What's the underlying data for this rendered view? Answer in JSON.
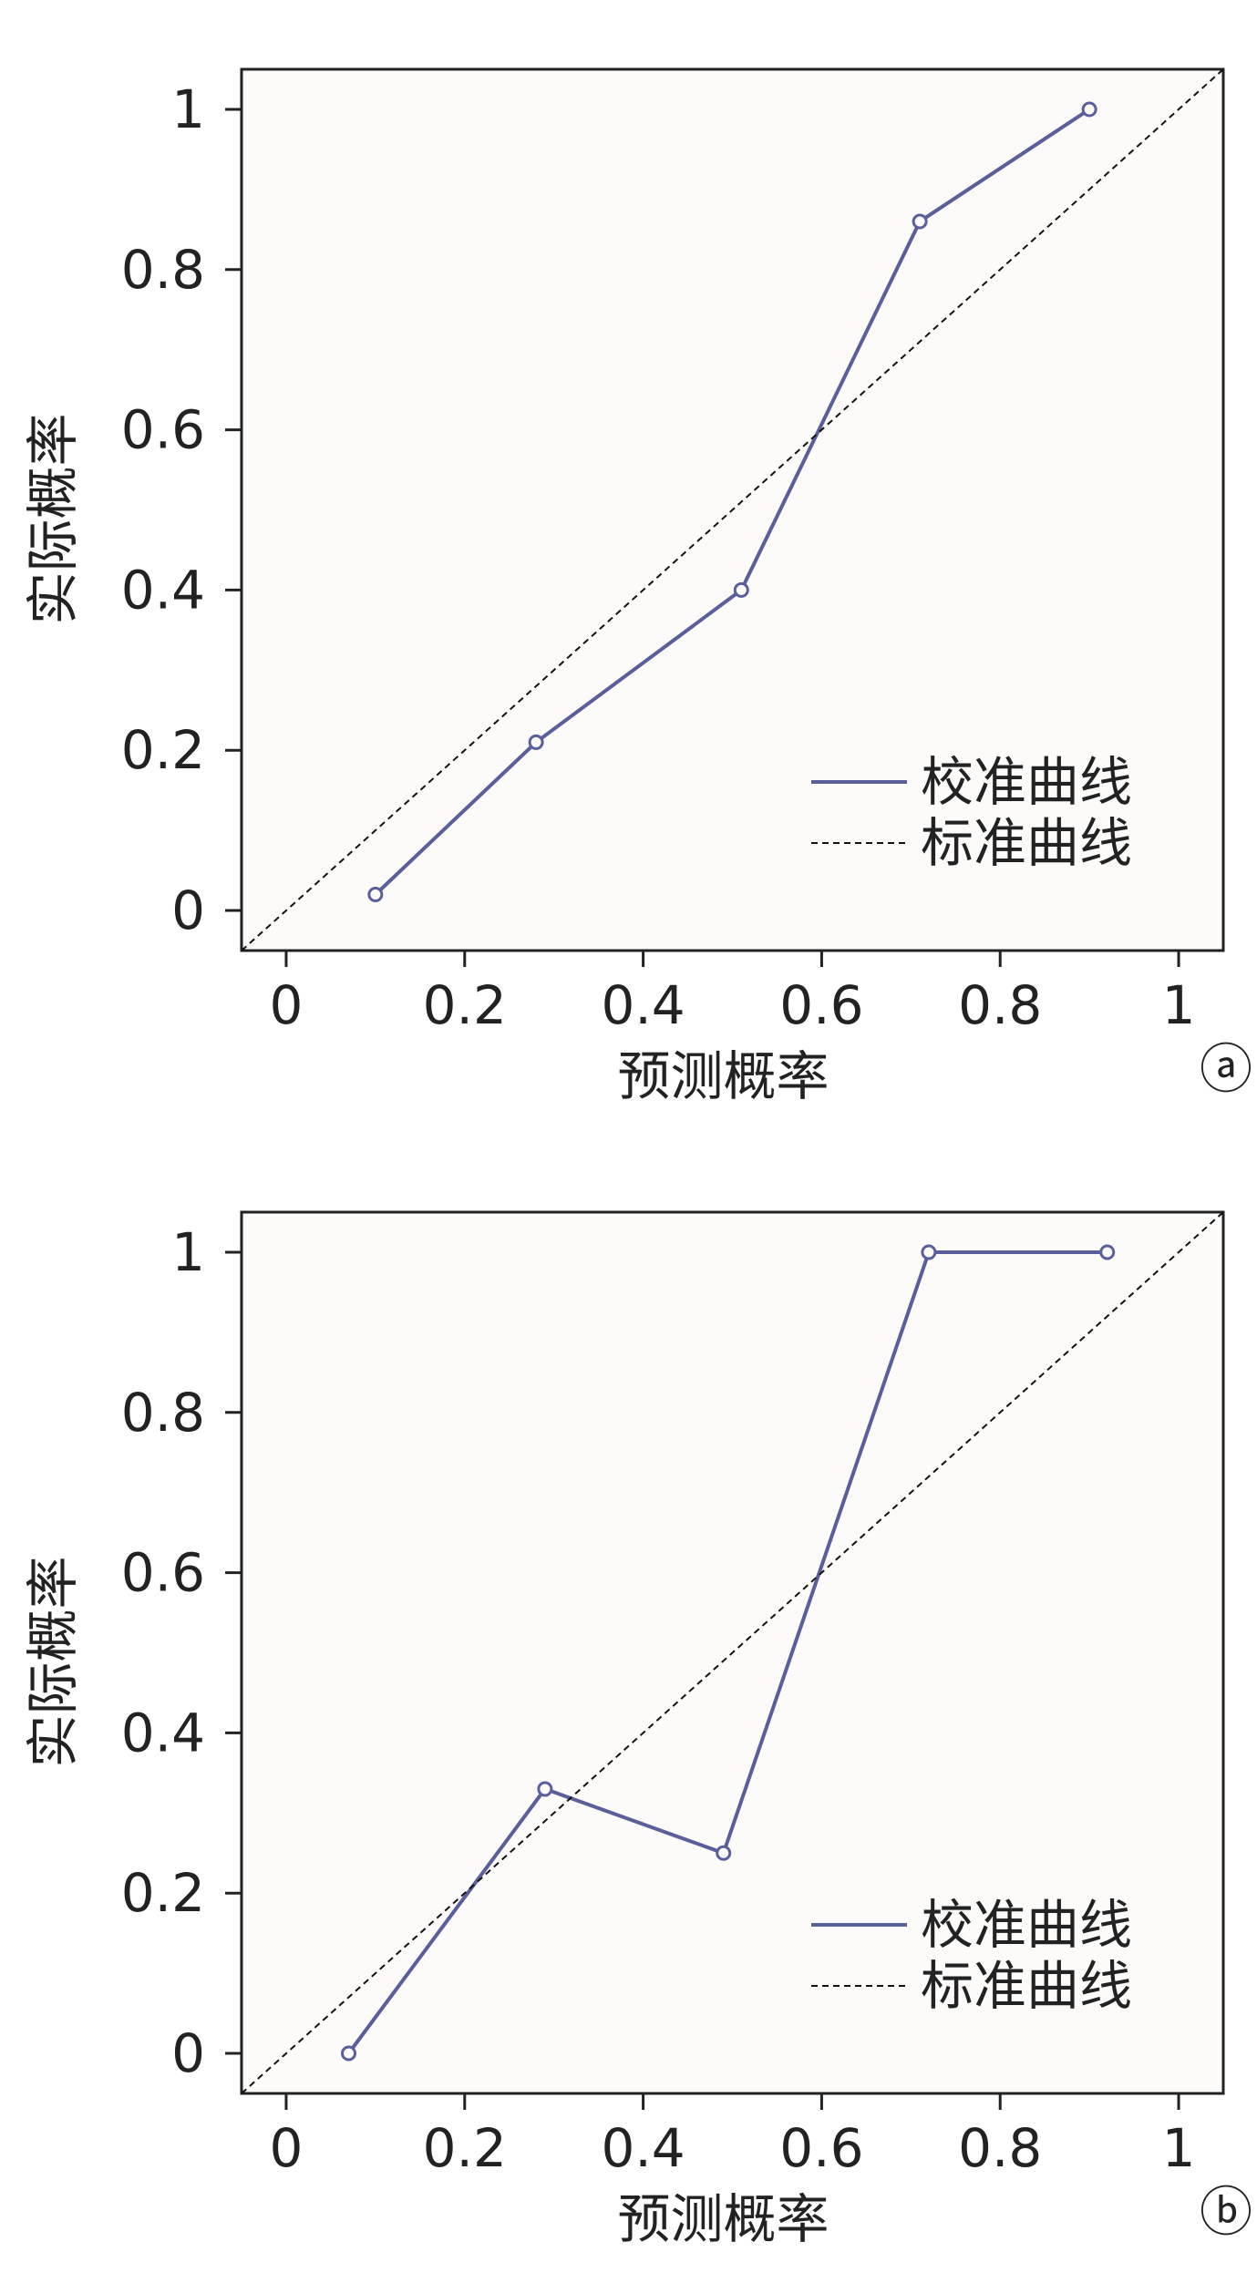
{
  "chart_data": [
    {
      "type": "line",
      "panel_label": "ⓐ",
      "xlabel": "预测概率",
      "ylabel": "实际概率",
      "xlim": [
        -0.05,
        1.05
      ],
      "ylim": [
        -0.05,
        1.05
      ],
      "xticks": [
        0,
        0.2,
        0.4,
        0.6,
        0.8,
        1
      ],
      "xtick_labels": [
        "0",
        "0.2",
        "0.4",
        "0.6",
        "0.8",
        "1"
      ],
      "yticks": [
        0,
        0.2,
        0.4,
        0.6,
        0.8,
        1
      ],
      "ytick_labels": [
        "0",
        "0.2",
        "0.4",
        "0.6",
        "0.8",
        "1"
      ],
      "grid": false,
      "legend_position": "bottom-right",
      "series": [
        {
          "name": "校准曲线",
          "style": "solid",
          "color": "#5a5f9c",
          "x": [
            0.1,
            0.28,
            0.51,
            0.71,
            0.9
          ],
          "y": [
            0.02,
            0.21,
            0.4,
            0.86,
            1.0
          ]
        },
        {
          "name": "标准曲线",
          "style": "dashed",
          "color": "#111111",
          "x": [
            -0.05,
            1.05
          ],
          "y": [
            -0.05,
            1.05
          ]
        }
      ]
    },
    {
      "type": "line",
      "panel_label": "ⓑ",
      "xlabel": "预测概率",
      "ylabel": "实际概率",
      "xlim": [
        -0.05,
        1.05
      ],
      "ylim": [
        -0.05,
        1.05
      ],
      "xticks": [
        0,
        0.2,
        0.4,
        0.6,
        0.8,
        1
      ],
      "xtick_labels": [
        "0",
        "0.2",
        "0.4",
        "0.6",
        "0.8",
        "1"
      ],
      "yticks": [
        0,
        0.2,
        0.4,
        0.6,
        0.8,
        1
      ],
      "ytick_labels": [
        "0",
        "0.2",
        "0.4",
        "0.6",
        "0.8",
        "1"
      ],
      "grid": false,
      "legend_position": "bottom-right",
      "series": [
        {
          "name": "校准曲线",
          "style": "solid",
          "color": "#5a5f9c",
          "x": [
            0.07,
            0.29,
            0.49,
            0.72,
            0.92
          ],
          "y": [
            0.0,
            0.33,
            0.25,
            1.0,
            1.0
          ]
        },
        {
          "name": "标准曲线",
          "style": "dashed",
          "color": "#111111",
          "x": [
            -0.05,
            1.05
          ],
          "y": [
            -0.05,
            1.05
          ]
        }
      ]
    }
  ]
}
